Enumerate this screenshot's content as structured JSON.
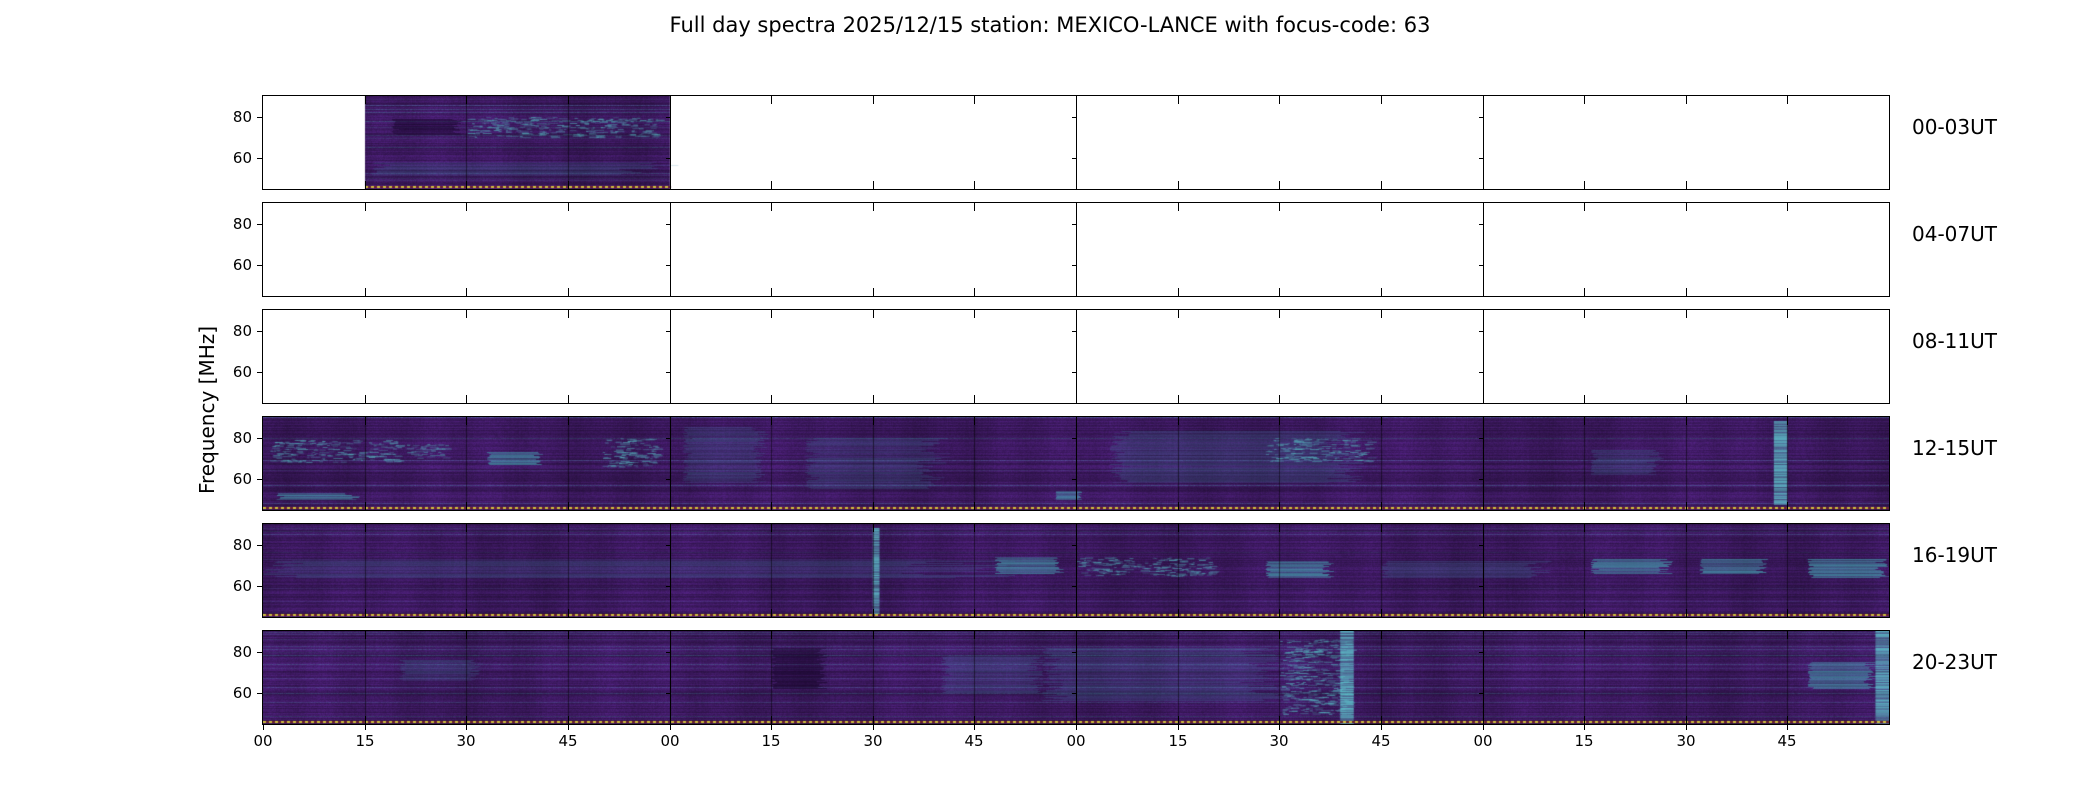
{
  "title": "Full day spectra 2025/12/15 station: MEXICO-LANCE with focus-code: 63",
  "ylabel": "Frequency [MHz]",
  "chart_data": {
    "type": "heatmap",
    "title": "Full day spectra 2025/12/15 station: MEXICO-LANCE with focus-code: 63",
    "ylabel": "Frequency [MHz]",
    "freq_range_mhz": [
      45,
      90
    ],
    "y_ticks_mhz": [
      80,
      60
    ],
    "y_tick_labels": [
      "80",
      "60"
    ],
    "minutes_per_row": 240,
    "x_tick_step_minutes": 15,
    "x_tick_labels": [
      "00",
      "15",
      "30",
      "45",
      "00",
      "15",
      "30",
      "45",
      "00",
      "15",
      "30",
      "45",
      "00",
      "15",
      "30",
      "45"
    ],
    "colormap": "viridis",
    "colors": {
      "base_purple": "#3a1858",
      "feature_teal": "#46a4b4",
      "dotted_line_yellow": "#d2c23c",
      "dotted_line_dark": "#6e2430",
      "frame": "#000000"
    },
    "rows": [
      {
        "label": "00-03UT",
        "coverage_minutes": [
          [
            15,
            60
          ]
        ],
        "features": [
          {
            "t": [
              19,
              29
            ],
            "f": [
              71,
              79
            ],
            "kind": "dark"
          },
          {
            "t": [
              30,
              58
            ],
            "f": [
              70,
              80
            ],
            "kind": "speckle"
          },
          {
            "t": [
              16,
              59
            ],
            "f": [
              52,
              58
            ],
            "kind": "faint"
          }
        ]
      },
      {
        "label": "04-07UT",
        "coverage_minutes": [],
        "features": []
      },
      {
        "label": "08-11UT",
        "coverage_minutes": [],
        "features": []
      },
      {
        "label": "12-15UT",
        "coverage_minutes": [
          [
            0,
            240
          ]
        ],
        "features": [
          {
            "t": [
              2,
              14
            ],
            "f": [
              50,
              53
            ],
            "kind": "bright"
          },
          {
            "t": [
              1,
              20
            ],
            "f": [
              68,
              79
            ],
            "kind": "speckle"
          },
          {
            "t": [
              21,
              27
            ],
            "f": [
              70,
              77
            ],
            "kind": "speckle"
          },
          {
            "t": [
              33,
              41
            ],
            "f": [
              67,
              73
            ],
            "kind": "bright"
          },
          {
            "t": [
              50,
              58
            ],
            "f": [
              66,
              80
            ],
            "kind": "speckle"
          },
          {
            "t": [
              62,
              74
            ],
            "f": [
              58,
              85
            ],
            "kind": "faint"
          },
          {
            "t": [
              80,
              100
            ],
            "f": [
              55,
              80
            ],
            "kind": "faint"
          },
          {
            "t": [
              117,
              121
            ],
            "f": [
              50,
              54
            ],
            "kind": "bright"
          },
          {
            "t": [
              125,
              162
            ],
            "f": [
              58,
              83
            ],
            "kind": "faint"
          },
          {
            "t": [
              148,
              163
            ],
            "f": [
              68,
              80
            ],
            "kind": "speckle"
          },
          {
            "t": [
              196,
              206
            ],
            "f": [
              62,
              74
            ],
            "kind": "faint"
          },
          {
            "t": [
              223,
              225
            ],
            "f": [
              48,
              88
            ],
            "kind": "vline"
          }
        ]
      },
      {
        "label": "16-19UT",
        "coverage_minutes": [
          [
            0,
            240
          ]
        ],
        "features": [
          {
            "t": [
              0,
              110
            ],
            "f": [
              64,
              73
            ],
            "kind": "faint"
          },
          {
            "t": [
              90,
              91
            ],
            "f": [
              46,
              88
            ],
            "kind": "vline"
          },
          {
            "t": [
              108,
              118
            ],
            "f": [
              66,
              74
            ],
            "kind": "bright"
          },
          {
            "t": [
              120,
              140
            ],
            "f": [
              65,
              74
            ],
            "kind": "speckle"
          },
          {
            "t": [
              148,
              158
            ],
            "f": [
              64,
              72
            ],
            "kind": "bright"
          },
          {
            "t": [
              165,
              190
            ],
            "f": [
              64,
              72
            ],
            "kind": "faint"
          },
          {
            "t": [
              196,
              208
            ],
            "f": [
              66,
              73
            ],
            "kind": "bright"
          },
          {
            "t": [
              212,
              222
            ],
            "f": [
              66,
              73
            ],
            "kind": "bright"
          },
          {
            "t": [
              228,
              240
            ],
            "f": [
              64,
              73
            ],
            "kind": "bright"
          }
        ]
      },
      {
        "label": "20-23UT",
        "coverage_minutes": [
          [
            0,
            240
          ]
        ],
        "features": [
          {
            "t": [
              20,
              32
            ],
            "f": [
              66,
              76
            ],
            "kind": "faint"
          },
          {
            "t": [
              75,
              83
            ],
            "f": [
              62,
              82
            ],
            "kind": "dark"
          },
          {
            "t": [
              100,
              115
            ],
            "f": [
              60,
              78
            ],
            "kind": "faint"
          },
          {
            "t": [
              115,
              150
            ],
            "f": [
              56,
              82
            ],
            "kind": "faint"
          },
          {
            "t": [
              150,
              160
            ],
            "f": [
              50,
              86
            ],
            "kind": "speckle"
          },
          {
            "t": [
              159,
              161
            ],
            "f": [
              45,
              90
            ],
            "kind": "vline"
          },
          {
            "t": [
              228,
              238
            ],
            "f": [
              62,
              75
            ],
            "kind": "bright"
          },
          {
            "t": [
              238,
              240
            ],
            "f": [
              45,
              90
            ],
            "kind": "vline"
          }
        ]
      }
    ]
  }
}
